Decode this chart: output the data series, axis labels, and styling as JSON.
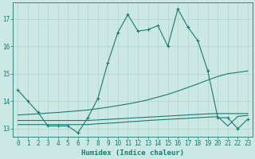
{
  "xlabel": "Humidex (Indice chaleur)",
  "ylabel": "",
  "xlim": [
    -0.5,
    23.5
  ],
  "ylim": [
    12.7,
    17.6
  ],
  "yticks": [
    13,
    14,
    15,
    16,
    17
  ],
  "xticks": [
    0,
    1,
    2,
    3,
    4,
    5,
    6,
    7,
    8,
    9,
    10,
    11,
    12,
    13,
    14,
    15,
    16,
    17,
    18,
    19,
    20,
    21,
    22,
    23
  ],
  "bg_color": "#cce8e4",
  "line_color": "#1a7a6e",
  "grid_color": "#b0d4cc",
  "lines": [
    {
      "x": [
        0,
        1,
        2,
        3,
        4,
        5,
        6,
        7,
        8,
        9,
        10,
        11,
        12,
        13,
        14,
        15,
        16,
        17,
        18,
        19,
        20,
        21,
        22,
        23
      ],
      "y": [
        14.4,
        14.0,
        13.6,
        13.1,
        13.1,
        13.1,
        12.85,
        13.4,
        14.1,
        15.4,
        16.5,
        17.15,
        16.55,
        16.6,
        16.75,
        16.0,
        17.35,
        16.7,
        16.2,
        15.1,
        13.4,
        13.4,
        13.0,
        13.35
      ],
      "marker": "+"
    },
    {
      "x": [
        0,
        1,
        2,
        3,
        4,
        5,
        6,
        7,
        8,
        9,
        10,
        11,
        12,
        13,
        14,
        15,
        16,
        17,
        18,
        19,
        20,
        21,
        22,
        23
      ],
      "y": [
        13.5,
        13.52,
        13.54,
        13.57,
        13.59,
        13.62,
        13.65,
        13.68,
        13.73,
        13.78,
        13.84,
        13.9,
        13.97,
        14.05,
        14.15,
        14.25,
        14.37,
        14.5,
        14.63,
        14.77,
        14.9,
        15.0,
        15.05,
        15.1
      ],
      "marker": null
    },
    {
      "x": [
        0,
        1,
        2,
        3,
        4,
        5,
        6,
        7,
        8,
        9,
        10,
        11,
        12,
        13,
        14,
        15,
        16,
        17,
        18,
        19,
        20,
        21,
        22,
        23
      ],
      "y": [
        13.3,
        13.3,
        13.3,
        13.3,
        13.3,
        13.3,
        13.3,
        13.3,
        13.32,
        13.34,
        13.36,
        13.38,
        13.4,
        13.42,
        13.44,
        13.46,
        13.48,
        13.5,
        13.52,
        13.54,
        13.55,
        13.55,
        13.55,
        13.55
      ],
      "marker": null
    },
    {
      "x": [
        0,
        1,
        2,
        3,
        4,
        5,
        6,
        7,
        8,
        9,
        10,
        11,
        12,
        13,
        14,
        15,
        16,
        17,
        18,
        19,
        20,
        21,
        22,
        23
      ],
      "y": [
        13.15,
        13.15,
        13.15,
        13.15,
        13.15,
        13.15,
        13.15,
        13.15,
        13.18,
        13.2,
        13.22,
        13.25,
        13.27,
        13.3,
        13.32,
        13.34,
        13.36,
        13.38,
        13.4,
        13.42,
        13.44,
        13.1,
        13.45,
        13.48
      ],
      "marker": null
    }
  ]
}
